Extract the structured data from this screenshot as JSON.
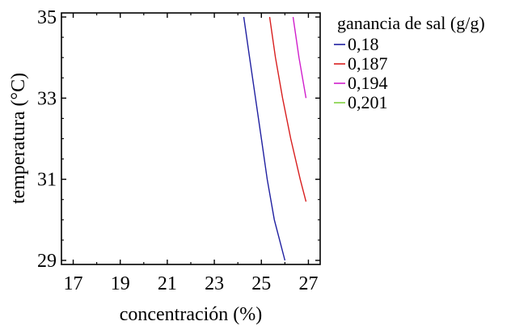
{
  "chart_data": {
    "type": "line",
    "title": "",
    "xlabel": "concentración (%)",
    "ylabel": "temperatura (°C)",
    "xlim": [
      16.5,
      27.5
    ],
    "ylim": [
      28.9,
      35.1
    ],
    "xticks": [
      17,
      19,
      21,
      23,
      25,
      27
    ],
    "yticks": [
      29,
      31,
      33,
      35
    ],
    "xtick_labels": [
      "17",
      "19",
      "21",
      "23",
      "25",
      "27"
    ],
    "ytick_labels": [
      "29",
      "31",
      "33",
      "35"
    ],
    "grid": false,
    "legend": {
      "title": "ganancia de sal (g/g)",
      "placement": "right"
    },
    "series": [
      {
        "name": "0,18",
        "color": "#1f1fa0",
        "points": [
          [
            24.25,
            35.0
          ],
          [
            24.5,
            34.0
          ],
          [
            24.75,
            33.0
          ],
          [
            25.0,
            32.0
          ],
          [
            25.25,
            31.0
          ],
          [
            25.55,
            30.0
          ],
          [
            26.0,
            29.0
          ]
        ]
      },
      {
        "name": "0,187",
        "color": "#d81e1e",
        "points": [
          [
            25.35,
            35.0
          ],
          [
            25.6,
            34.0
          ],
          [
            25.9,
            33.0
          ],
          [
            26.25,
            32.0
          ],
          [
            26.65,
            31.0
          ],
          [
            26.9,
            30.45
          ]
        ]
      },
      {
        "name": "0,194",
        "color": "#d01ecc",
        "points": [
          [
            26.35,
            35.0
          ],
          [
            26.6,
            34.0
          ],
          [
            26.9,
            33.0
          ]
        ]
      },
      {
        "name": "0,201",
        "color": "#80d040",
        "points": []
      }
    ]
  }
}
